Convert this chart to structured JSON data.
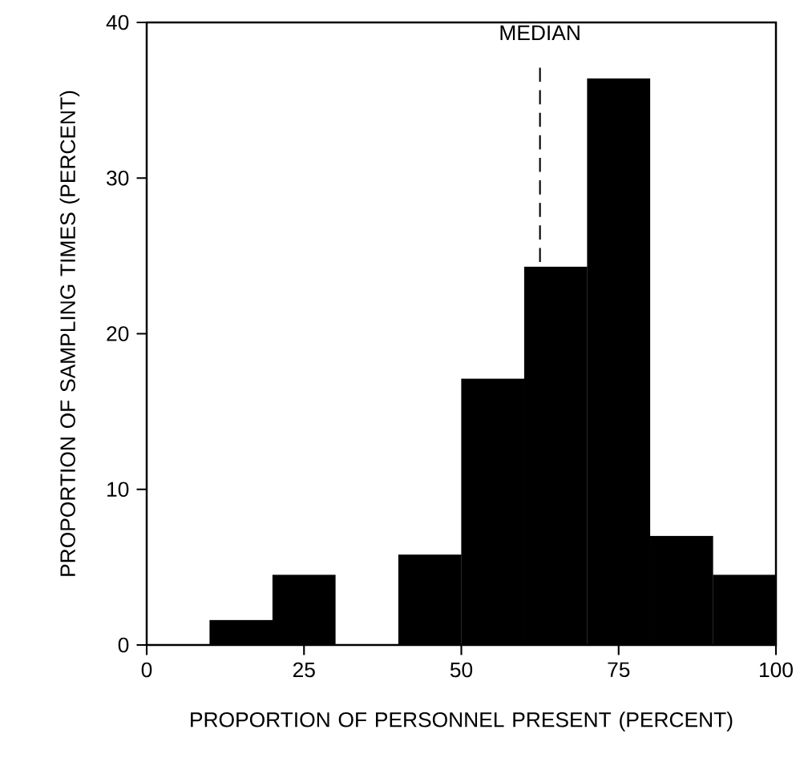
{
  "chart_data": {
    "type": "histogram",
    "xlabel": "PROPORTION OF PERSONNEL PRESENT (PERCENT)",
    "ylabel": "PROPORTION OF SAMPLING TIMES (PERCENT)",
    "bins": [
      0,
      10,
      20,
      30,
      40,
      50,
      60,
      70,
      80,
      90,
      100
    ],
    "values": [
      0,
      1.6,
      4.5,
      0,
      5.8,
      17.1,
      24.3,
      36.4,
      7.0,
      4.5
    ],
    "color": "#000000",
    "xlim": [
      0,
      100
    ],
    "ylim": [
      0,
      40
    ],
    "xticks": [
      0,
      25,
      50,
      75,
      100
    ],
    "yticks": [
      0,
      10,
      20,
      30,
      40
    ],
    "ref_lines": [
      {
        "axis": "x",
        "value": 62.5,
        "label": "MEDIAN",
        "line_style": "dashed",
        "color": "#000000"
      }
    ]
  }
}
